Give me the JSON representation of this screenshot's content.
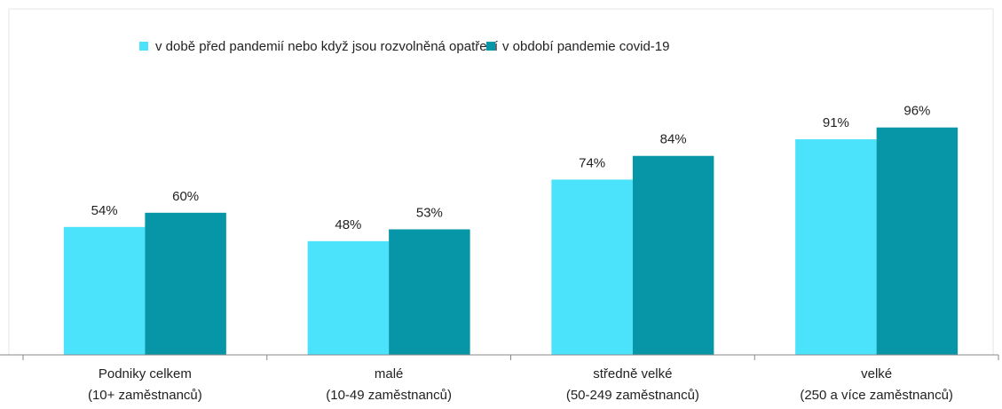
{
  "chart_data": {
    "type": "bar",
    "categories": [
      [
        "Podniky celkem",
        "(10+ zaměstnanců)"
      ],
      [
        "malé",
        "(10-49 zaměstnanců)"
      ],
      [
        "středně velké",
        "(50-249 zaměstnanců)"
      ],
      [
        "velké",
        "(250 a více zaměstnanců)"
      ]
    ],
    "series": [
      {
        "name": "v době před pandemií nebo když jsou rozvolněná opatření",
        "color": "#4be2fb",
        "values": [
          54,
          48,
          74,
          91
        ],
        "value_labels": [
          "54%",
          "48%",
          "74%",
          "91%"
        ]
      },
      {
        "name": "v období pandemie covid-19",
        "color": "#0796a8",
        "values": [
          60,
          53,
          84,
          96
        ],
        "value_labels": [
          "60%",
          "53%",
          "84%",
          "96%"
        ]
      }
    ],
    "ylim": [
      0,
      100
    ]
  }
}
